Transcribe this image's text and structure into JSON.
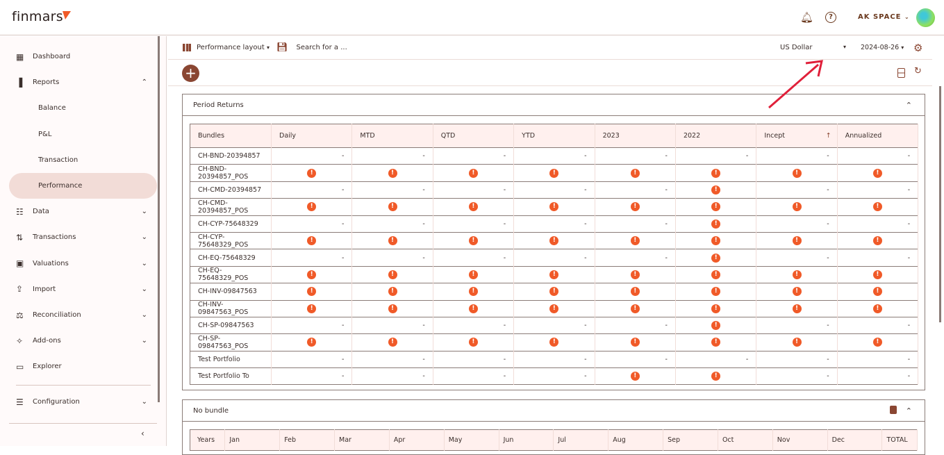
{
  "header": {
    "logo": "finmars",
    "space": "AK SPACE",
    "icons": [
      "bell-icon",
      "help-icon",
      "chevron-down-icon",
      "avatar"
    ]
  },
  "sidebar": {
    "items": [
      {
        "label": "Dashboard",
        "icon": "dashboard-icon"
      },
      {
        "label": "Reports",
        "icon": "bar-chart-icon",
        "expanded": true,
        "children": [
          {
            "label": "Balance"
          },
          {
            "label": "P&L"
          },
          {
            "label": "Transaction"
          },
          {
            "label": "Performance",
            "active": true
          }
        ]
      },
      {
        "label": "Data",
        "icon": "data-icon"
      },
      {
        "label": "Transactions",
        "icon": "swap-icon"
      },
      {
        "label": "Valuations",
        "icon": "wallet-icon"
      },
      {
        "label": "Import",
        "icon": "upload-icon"
      },
      {
        "label": "Reconciliation",
        "icon": "scale-icon"
      },
      {
        "label": "Add-ons",
        "icon": "puzzle-icon"
      },
      {
        "label": "Explorer",
        "icon": "folder-icon"
      },
      {
        "label": "Configuration",
        "icon": "sliders-icon"
      }
    ]
  },
  "toolbar": {
    "layout_label": "Performance layout",
    "search_placeholder": "Search for a ...",
    "currency": "US Dollar",
    "date": "2024-08-26"
  },
  "period_returns": {
    "title": "Period Returns",
    "columns": [
      "Bundles",
      "Daily",
      "MTD",
      "QTD",
      "YTD",
      "2023",
      "2022",
      "Incept",
      "Annualized"
    ],
    "sorted_column": "Incept",
    "rows": [
      {
        "name": "CH-BND-20394857",
        "cells": [
          "-",
          "-",
          "-",
          "-",
          "-",
          "-",
          "-",
          "-"
        ]
      },
      {
        "name": "CH-BND-20394857_POS",
        "cells": [
          "!",
          "!",
          "!",
          "!",
          "!",
          "!",
          "!",
          "!"
        ]
      },
      {
        "name": "CH-CMD-20394857",
        "cells": [
          "-",
          "-",
          "-",
          "-",
          "-",
          "!",
          "-",
          "-"
        ]
      },
      {
        "name": "CH-CMD-20394857_POS",
        "cells": [
          "!",
          "!",
          "!",
          "!",
          "!",
          "!",
          "!",
          "!"
        ]
      },
      {
        "name": "CH-CYP-75648329",
        "cells": [
          "-",
          "-",
          "-",
          "-",
          "-",
          "!",
          "-",
          "-"
        ]
      },
      {
        "name": "CH-CYP-75648329_POS",
        "cells": [
          "!",
          "!",
          "!",
          "!",
          "!",
          "!",
          "!",
          "!"
        ]
      },
      {
        "name": "CH-EQ-75648329",
        "cells": [
          "-",
          "-",
          "-",
          "-",
          "-",
          "!",
          "-",
          "-"
        ]
      },
      {
        "name": "CH-EQ-75648329_POS",
        "cells": [
          "!",
          "!",
          "!",
          "!",
          "!",
          "!",
          "!",
          "!"
        ]
      },
      {
        "name": "CH-INV-09847563",
        "cells": [
          "!",
          "!",
          "!",
          "!",
          "!",
          "!",
          "!",
          "!"
        ]
      },
      {
        "name": "CH-INV-09847563_POS",
        "cells": [
          "!",
          "!",
          "!",
          "!",
          "!",
          "!",
          "!",
          "!"
        ]
      },
      {
        "name": "CH-SP-09847563",
        "cells": [
          "-",
          "-",
          "-",
          "-",
          "-",
          "!",
          "-",
          "-"
        ]
      },
      {
        "name": "CH-SP-09847563_POS",
        "cells": [
          "!",
          "!",
          "!",
          "!",
          "!",
          "!",
          "!",
          "!"
        ]
      },
      {
        "name": "Test Portfolio",
        "cells": [
          "-",
          "-",
          "-",
          "-",
          "-",
          "-",
          "-",
          "-"
        ]
      },
      {
        "name": "Test Portfolio To",
        "cells": [
          "-",
          "-",
          "-",
          "-",
          "!",
          "!",
          "-",
          "-"
        ]
      }
    ]
  },
  "no_bundle": {
    "title": "No bundle",
    "columns": [
      "Years",
      "Jan",
      "Feb",
      "Mar",
      "Apr",
      "May",
      "Jun",
      "Jul",
      "Aug",
      "Sep",
      "Oct",
      "Nov",
      "Dec",
      "TOTAL"
    ]
  },
  "colors": {
    "accent": "#8a4632",
    "error": "#f05a28",
    "header_bg": "#fff0ee",
    "active_nav": "#f2dcd7",
    "annotation_arrow": "#e0203a"
  }
}
